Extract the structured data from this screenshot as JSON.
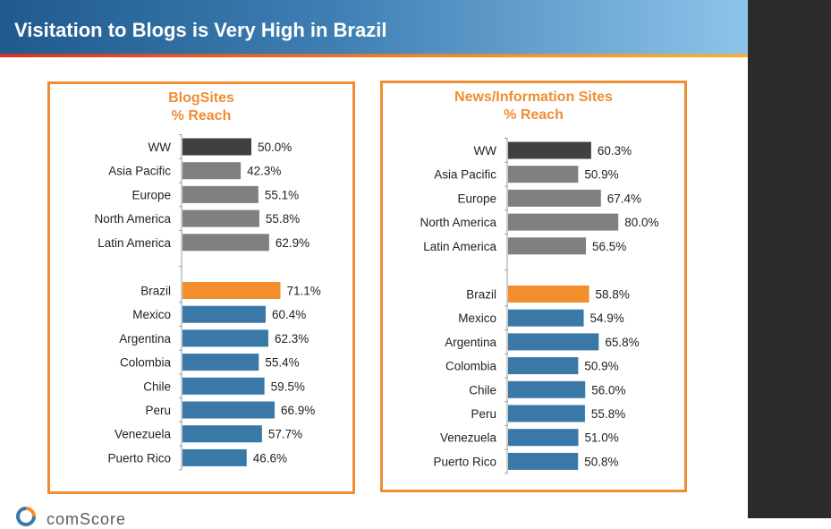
{
  "slide": {
    "title": "Visitation to Blogs is Very High in Brazil",
    "footer_brand": "comScore"
  },
  "colors": {
    "ww": "#404040",
    "region": "#808080",
    "brazil": "#f28e2b",
    "country": "#3a78a8",
    "accent": "#ef8d32"
  },
  "chart_data": [
    {
      "type": "bar",
      "orientation": "horizontal",
      "title": "BlogSites",
      "subtitle": "% Reach",
      "xlim": [
        0,
        100
      ],
      "categories": [
        "WW",
        "Asia Pacific",
        "Europe",
        "North America",
        "Latin America",
        "Brazil",
        "Mexico",
        "Argentina",
        "Colombia",
        "Chile",
        "Peru",
        "Venezuela",
        "Puerto Rico"
      ],
      "values": [
        50.0,
        42.3,
        55.1,
        55.8,
        62.9,
        71.1,
        60.4,
        62.3,
        55.4,
        59.5,
        66.9,
        57.7,
        46.6
      ],
      "labels": [
        "50.0%",
        "42.3%",
        "55.1%",
        "55.8%",
        "62.9%",
        "71.1%",
        "60.4%",
        "62.3%",
        "55.4%",
        "59.5%",
        "66.9%",
        "57.7%",
        "46.6%"
      ],
      "groups": [
        "ww",
        "region",
        "region",
        "region",
        "region",
        "brazil",
        "country",
        "country",
        "country",
        "country",
        "country",
        "country",
        "country"
      ]
    },
    {
      "type": "bar",
      "orientation": "horizontal",
      "title": "News/Information Sites",
      "subtitle": "% Reach",
      "xlim": [
        0,
        100
      ],
      "categories": [
        "WW",
        "Asia Pacific",
        "Europe",
        "North America",
        "Latin America",
        "Brazil",
        "Mexico",
        "Argentina",
        "Colombia",
        "Chile",
        "Peru",
        "Venezuela",
        "Puerto Rico"
      ],
      "values": [
        60.3,
        50.9,
        67.4,
        80.0,
        56.5,
        58.8,
        54.9,
        65.8,
        50.9,
        56.0,
        55.8,
        51.0,
        50.8
      ],
      "labels": [
        "60.3%",
        "50.9%",
        "67.4%",
        "80.0%",
        "56.5%",
        "58.8%",
        "54.9%",
        "65.8%",
        "50.9%",
        "56.0%",
        "55.8%",
        "51.0%",
        "50.8%"
      ],
      "groups": [
        "ww",
        "region",
        "region",
        "region",
        "region",
        "brazil",
        "country",
        "country",
        "country",
        "country",
        "country",
        "country",
        "country"
      ]
    }
  ]
}
